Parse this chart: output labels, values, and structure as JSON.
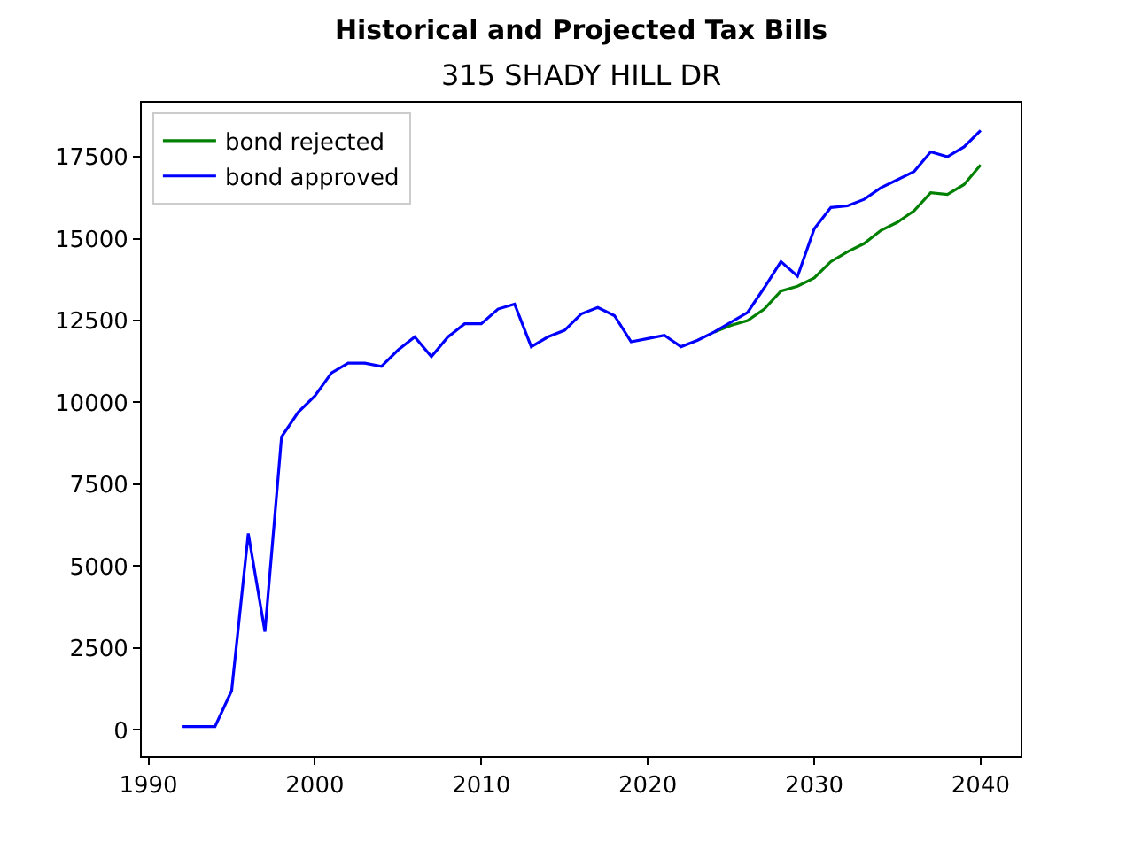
{
  "chart_data": {
    "type": "line",
    "title": "Historical and Projected Tax Bills",
    "subtitle": "315 SHADY HILL DR",
    "x": [
      1992,
      1993,
      1994,
      1995,
      1996,
      1997,
      1998,
      1999,
      2000,
      2001,
      2002,
      2003,
      2004,
      2005,
      2006,
      2007,
      2008,
      2009,
      2010,
      2011,
      2012,
      2013,
      2014,
      2015,
      2016,
      2017,
      2018,
      2019,
      2020,
      2021,
      2022,
      2023,
      2024,
      2025,
      2026,
      2027,
      2028,
      2029,
      2030,
      2031,
      2032,
      2033,
      2034,
      2035,
      2036,
      2037,
      2038,
      2039,
      2040
    ],
    "series": [
      {
        "name": "bond rejected",
        "color": "#008000",
        "values": [
          null,
          null,
          null,
          null,
          null,
          null,
          null,
          null,
          null,
          null,
          null,
          null,
          null,
          null,
          null,
          null,
          null,
          null,
          null,
          null,
          null,
          null,
          null,
          null,
          null,
          null,
          null,
          null,
          null,
          null,
          null,
          null,
          12150,
          12350,
          12500,
          12850,
          13400,
          13550,
          13800,
          14300,
          14600,
          14850,
          15250,
          15500,
          15850,
          16400,
          16350,
          16650,
          17250
        ]
      },
      {
        "name": "bond approved",
        "color": "#0000ff",
        "values": [
          100,
          100,
          100,
          1200,
          6000,
          3000,
          8950,
          9700,
          10200,
          10900,
          11200,
          11200,
          11100,
          11600,
          12000,
          11400,
          12000,
          12400,
          12400,
          12850,
          13000,
          11700,
          12000,
          12200,
          12700,
          12900,
          12650,
          11850,
          11950,
          12050,
          11700,
          11900,
          12150,
          12450,
          12750,
          13500,
          14300,
          13850,
          15300,
          15950,
          16000,
          16200,
          16550,
          16800,
          17050,
          17650,
          17500,
          17800,
          18300
        ]
      }
    ],
    "xlim": [
      1989.6,
      2042.4
    ],
    "xticks": [
      1990,
      2000,
      2010,
      2020,
      2030,
      2040
    ],
    "ylim": [
      -800,
      19150
    ],
    "yticks": [
      0,
      2500,
      5000,
      7500,
      10000,
      12500,
      15000,
      17500
    ],
    "grid": false,
    "legend": "top left",
    "marker": "none",
    "line_style": "solid"
  }
}
